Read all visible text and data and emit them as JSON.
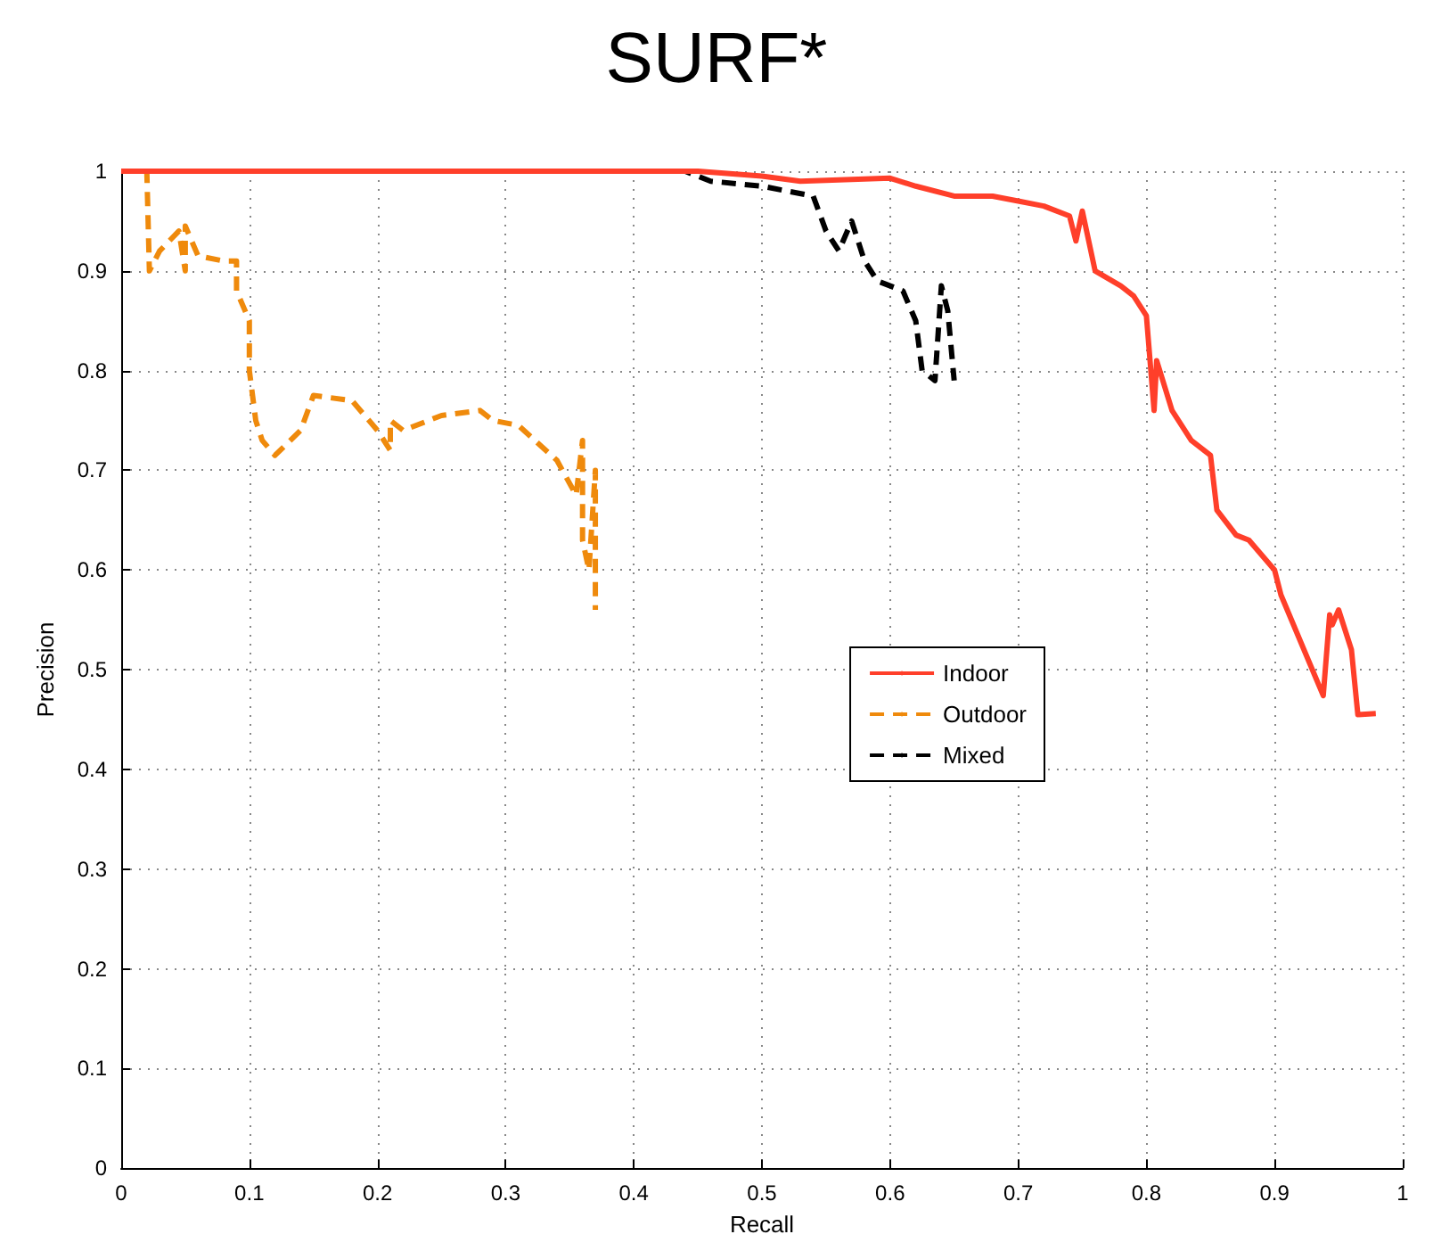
{
  "chart_data": {
    "type": "line",
    "title": "SURF*",
    "xlabel": "Recall",
    "ylabel": "Precision",
    "xlim": [
      0,
      1
    ],
    "ylim": [
      0,
      1
    ],
    "xticks": [
      0,
      0.1,
      0.2,
      0.3,
      0.4,
      0.5,
      0.6,
      0.7,
      0.8,
      0.9,
      1
    ],
    "yticks": [
      0,
      0.1,
      0.2,
      0.3,
      0.4,
      0.5,
      0.6,
      0.7,
      0.8,
      0.9,
      1
    ],
    "grid": true,
    "legend": "right",
    "marker": "none",
    "series": [
      {
        "name": "Indoor",
        "color": "#ff3f2a",
        "line_style": "solid",
        "x": [
          0,
          0.45,
          0.5,
          0.53,
          0.6,
          0.62,
          0.65,
          0.68,
          0.7,
          0.72,
          0.74,
          0.745,
          0.75,
          0.76,
          0.78,
          0.79,
          0.8,
          0.806,
          0.808,
          0.82,
          0.835,
          0.85,
          0.855,
          0.87,
          0.88,
          0.9,
          0.905,
          0.938,
          0.943,
          0.945,
          0.95,
          0.96,
          0.965,
          0.979
        ],
        "values": [
          1,
          1,
          0.995,
          0.99,
          0.993,
          0.985,
          0.975,
          0.975,
          0.97,
          0.965,
          0.955,
          0.93,
          0.96,
          0.9,
          0.885,
          0.875,
          0.855,
          0.76,
          0.81,
          0.76,
          0.73,
          0.715,
          0.66,
          0.635,
          0.63,
          0.6,
          0.575,
          0.474,
          0.555,
          0.545,
          0.56,
          0.52,
          0.455,
          0.456
        ]
      },
      {
        "name": "Outdoor",
        "color": "#ef8a0c",
        "line_style": "dashed",
        "x": [
          0,
          0.02,
          0.022,
          0.03,
          0.045,
          0.05,
          0.05,
          0.06,
          0.08,
          0.09,
          0.09,
          0.1,
          0.1,
          0.105,
          0.11,
          0.12,
          0.14,
          0.15,
          0.18,
          0.2,
          0.21,
          0.21,
          0.22,
          0.25,
          0.28,
          0.29,
          0.31,
          0.34,
          0.355,
          0.36,
          0.36,
          0.365,
          0.37,
          0.37
        ],
        "values": [
          1,
          1,
          0.9,
          0.92,
          0.94,
          0.9,
          0.945,
          0.915,
          0.91,
          0.91,
          0.88,
          0.85,
          0.8,
          0.75,
          0.73,
          0.715,
          0.74,
          0.775,
          0.77,
          0.74,
          0.72,
          0.75,
          0.74,
          0.755,
          0.76,
          0.75,
          0.745,
          0.71,
          0.675,
          0.73,
          0.63,
          0.6,
          0.7,
          0.56
        ]
      },
      {
        "name": "Mixed",
        "color": "#000000",
        "line_style": "dashed",
        "x": [
          0,
          0.44,
          0.46,
          0.5,
          0.54,
          0.55,
          0.56,
          0.57,
          0.58,
          0.59,
          0.61,
          0.62,
          0.625,
          0.635,
          0.64,
          0.645,
          0.65
        ],
        "values": [
          1,
          1,
          0.99,
          0.985,
          0.975,
          0.94,
          0.92,
          0.95,
          0.91,
          0.89,
          0.88,
          0.85,
          0.8,
          0.79,
          0.885,
          0.86,
          0.79
        ]
      }
    ]
  }
}
